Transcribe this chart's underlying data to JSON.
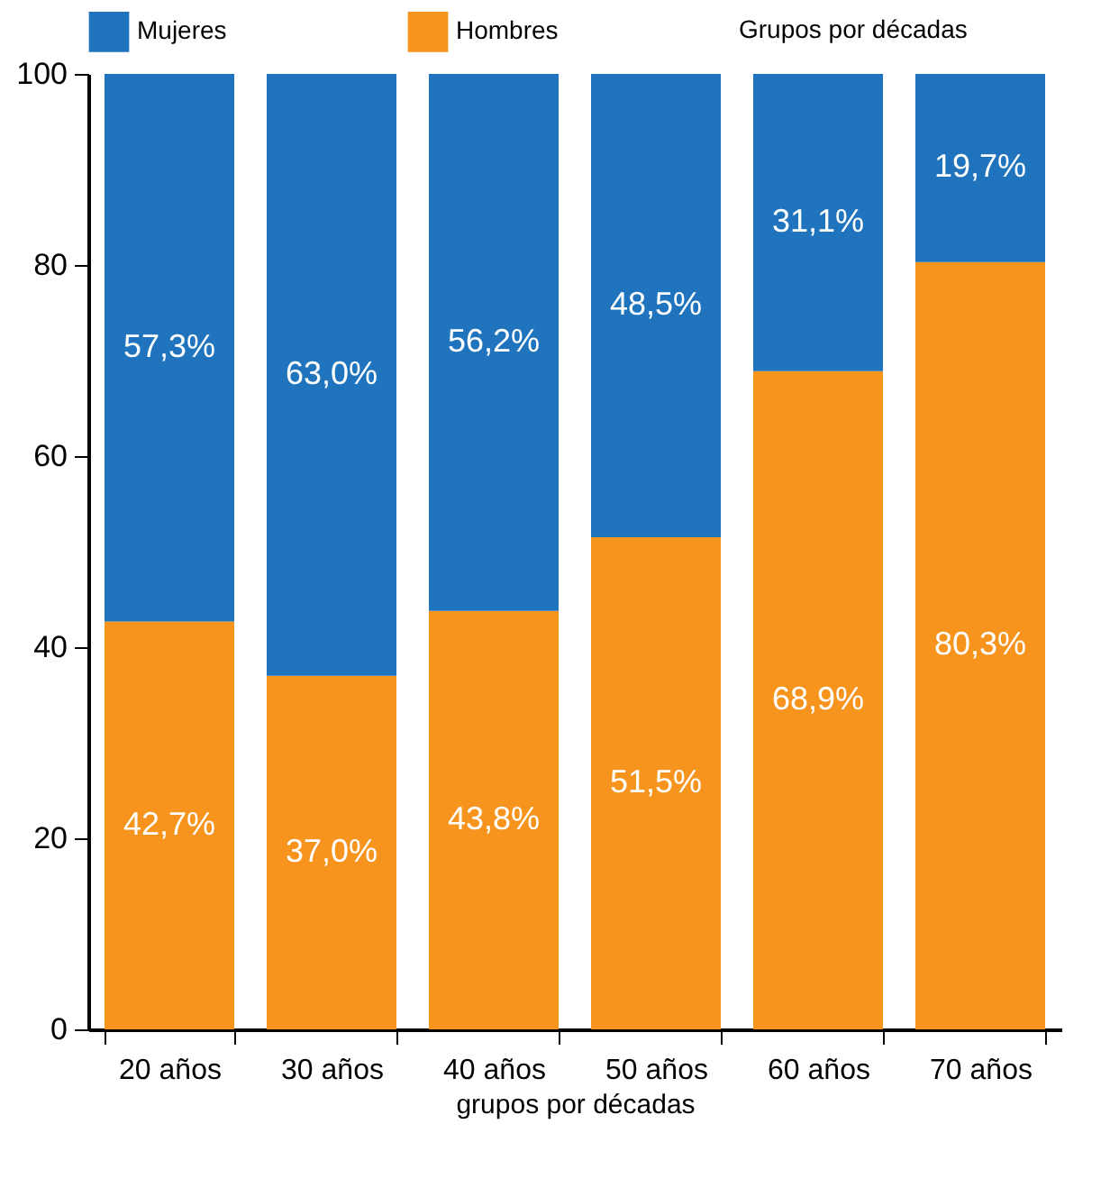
{
  "chart_data": {
    "type": "bar",
    "stacked": true,
    "legend_title": "Grupos por décadas",
    "xlabel": "grupos por décadas",
    "categories": [
      "20 años",
      "30 años",
      "40 años",
      "50 años",
      "60 años",
      "70 años"
    ],
    "series": [
      {
        "name": "Hombres",
        "color": "#f7941d",
        "values": [
          42.7,
          37.0,
          43.8,
          51.5,
          68.9,
          80.3
        ],
        "value_labels": [
          "42,7%",
          "37,0%",
          "43,8%",
          "51,5%",
          "68,9%",
          "80,3%"
        ]
      },
      {
        "name": "Mujeres",
        "color": "#1f74bd",
        "values": [
          57.3,
          63.0,
          56.2,
          48.5,
          31.1,
          19.7
        ],
        "value_labels": [
          "57,3%",
          "63,0%",
          "56,2%",
          "48,5%",
          "31,1%",
          "19,7%"
        ]
      }
    ],
    "ylim": [
      0,
      100
    ],
    "yticks": [
      0,
      20,
      40,
      60,
      80,
      100
    ],
    "grid": false,
    "legend": "top"
  }
}
